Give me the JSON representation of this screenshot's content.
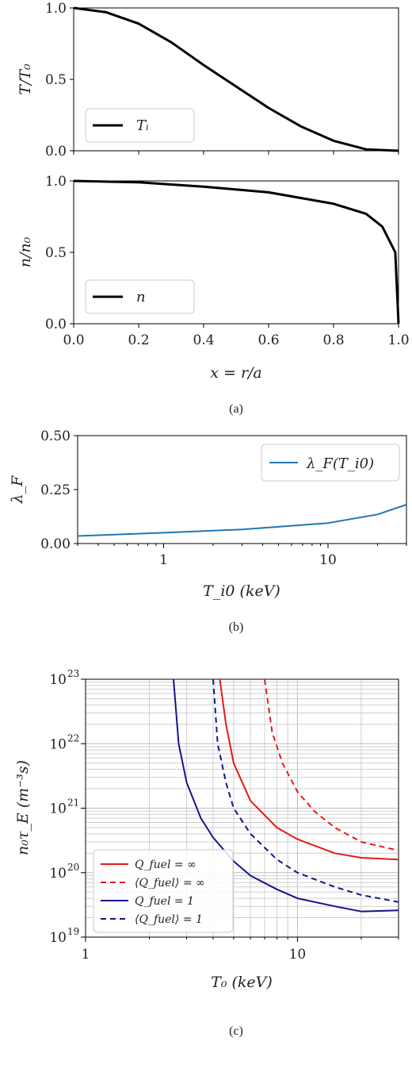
{
  "chart_data": [
    {
      "id": "top",
      "type": "line",
      "ylabel": "T/T₀",
      "xlim": [
        0,
        1
      ],
      "ylim": [
        0,
        1
      ],
      "yticks": [
        "0.0",
        "0.5",
        "1.0"
      ],
      "legend": {
        "position": "lower-left",
        "entries": [
          "Tᵢ"
        ]
      },
      "series": [
        {
          "name": "Tᵢ",
          "color": "#000000",
          "x": [
            0,
            0.1,
            0.2,
            0.3,
            0.4,
            0.5,
            0.6,
            0.7,
            0.8,
            0.9,
            1.0
          ],
          "y": [
            1.0,
            0.97,
            0.89,
            0.76,
            0.6,
            0.45,
            0.3,
            0.17,
            0.07,
            0.01,
            0.0
          ]
        }
      ]
    },
    {
      "id": "middle",
      "type": "line",
      "ylabel": "n/n₀",
      "xlabel": "x = r/a",
      "xlim": [
        0,
        1
      ],
      "ylim": [
        0,
        1
      ],
      "xticks": [
        "0.0",
        "0.2",
        "0.4",
        "0.6",
        "0.8",
        "1.0"
      ],
      "yticks": [
        "0.0",
        "0.5",
        "1.0"
      ],
      "legend": {
        "position": "lower-left",
        "entries": [
          "n"
        ]
      },
      "series": [
        {
          "name": "n",
          "color": "#000000",
          "x": [
            0,
            0.2,
            0.4,
            0.6,
            0.8,
            0.9,
            0.95,
            0.99,
            1.0
          ],
          "y": [
            1.0,
            0.99,
            0.96,
            0.92,
            0.84,
            0.77,
            0.68,
            0.5,
            0.0
          ]
        }
      ]
    },
    {
      "id": "b",
      "type": "line",
      "ylabel": "λ_F",
      "xlabel": "T_i0 (keV)",
      "xscale": "log",
      "xlim": [
        0.3,
        30
      ],
      "ylim": [
        0,
        0.5
      ],
      "xticks": [
        "1",
        "10"
      ],
      "yticks": [
        "0.00",
        "0.25",
        "0.50"
      ],
      "legend": {
        "position": "top-right",
        "entries": [
          "λ_F(T_i0)"
        ]
      },
      "series": [
        {
          "name": "λ_F(T_i0)",
          "color": "#1f77b4",
          "x": [
            0.3,
            1,
            3,
            10,
            20,
            30
          ],
          "y": [
            0.035,
            0.05,
            0.065,
            0.095,
            0.135,
            0.18
          ]
        }
      ]
    },
    {
      "id": "c",
      "type": "line",
      "ylabel": "n₀τ_E (m⁻³s)",
      "xlabel": "T₀ (keV)",
      "xscale": "log",
      "yscale": "log",
      "xlim": [
        1,
        30
      ],
      "ylim": [
        1e+19,
        1e+23
      ],
      "xticks": [
        "1",
        "10"
      ],
      "yticks": [
        "10",
        "10",
        "10",
        "10",
        "10"
      ],
      "ytick_exponents": [
        "19",
        "20",
        "21",
        "22",
        "23"
      ],
      "grid": true,
      "legend": {
        "position": "lower-left",
        "entries": [
          "Q_fuel = ∞",
          "⟨Q_fuel⟩ = ∞",
          "Q_fuel = 1",
          "⟨Q_fuel⟩ = 1"
        ]
      },
      "series": [
        {
          "name": "Q_fuel = ∞",
          "color": "#e41a1c",
          "dash": "solid",
          "x": [
            4.3,
            4.6,
            5,
            6,
            8,
            10,
            15,
            20,
            30
          ],
          "y": [
            1e+23,
            2e+22,
            5e+21,
            1.3e+21,
            5e+20,
            3.3e+20,
            2e+20,
            1.7e+20,
            1.6e+20
          ]
        },
        {
          "name": "⟨Q_fuel⟩ = ∞",
          "color": "#e41a1c",
          "dash": "dashed",
          "x": [
            7.0,
            7.6,
            8.5,
            10,
            12,
            15,
            20,
            30
          ],
          "y": [
            1e+23,
            1.5e+22,
            5e+21,
            1.8e+21,
            9e+20,
            5e+20,
            3e+20,
            2.2e+20
          ]
        },
        {
          "name": "Q_fuel = 1",
          "color": "#14148c",
          "dash": "solid",
          "x": [
            2.6,
            2.75,
            3.0,
            3.5,
            4,
            5,
            6,
            8,
            10,
            15,
            20,
            30
          ],
          "y": [
            1e+23,
            1e+22,
            2.5e+21,
            7e+20,
            3.5e+20,
            1.5e+20,
            9e+19,
            5.5e+19,
            4e+19,
            3e+19,
            2.5e+19,
            2.6e+19
          ]
        },
        {
          "name": "⟨Q_fuel⟩ = 1",
          "color": "#14148c",
          "dash": "dashed",
          "x": [
            4.0,
            4.2,
            4.6,
            5,
            6,
            8,
            10,
            15,
            20,
            30
          ],
          "y": [
            1e+23,
            1e+22,
            2.5e+21,
            1e+21,
            4e+20,
            1.6e+20,
            1e+20,
            6e+19,
            4.5e+19,
            3.5e+19
          ]
        }
      ]
    }
  ],
  "captions": {
    "a": "(a)",
    "b": "(b)",
    "c": "(c)"
  }
}
